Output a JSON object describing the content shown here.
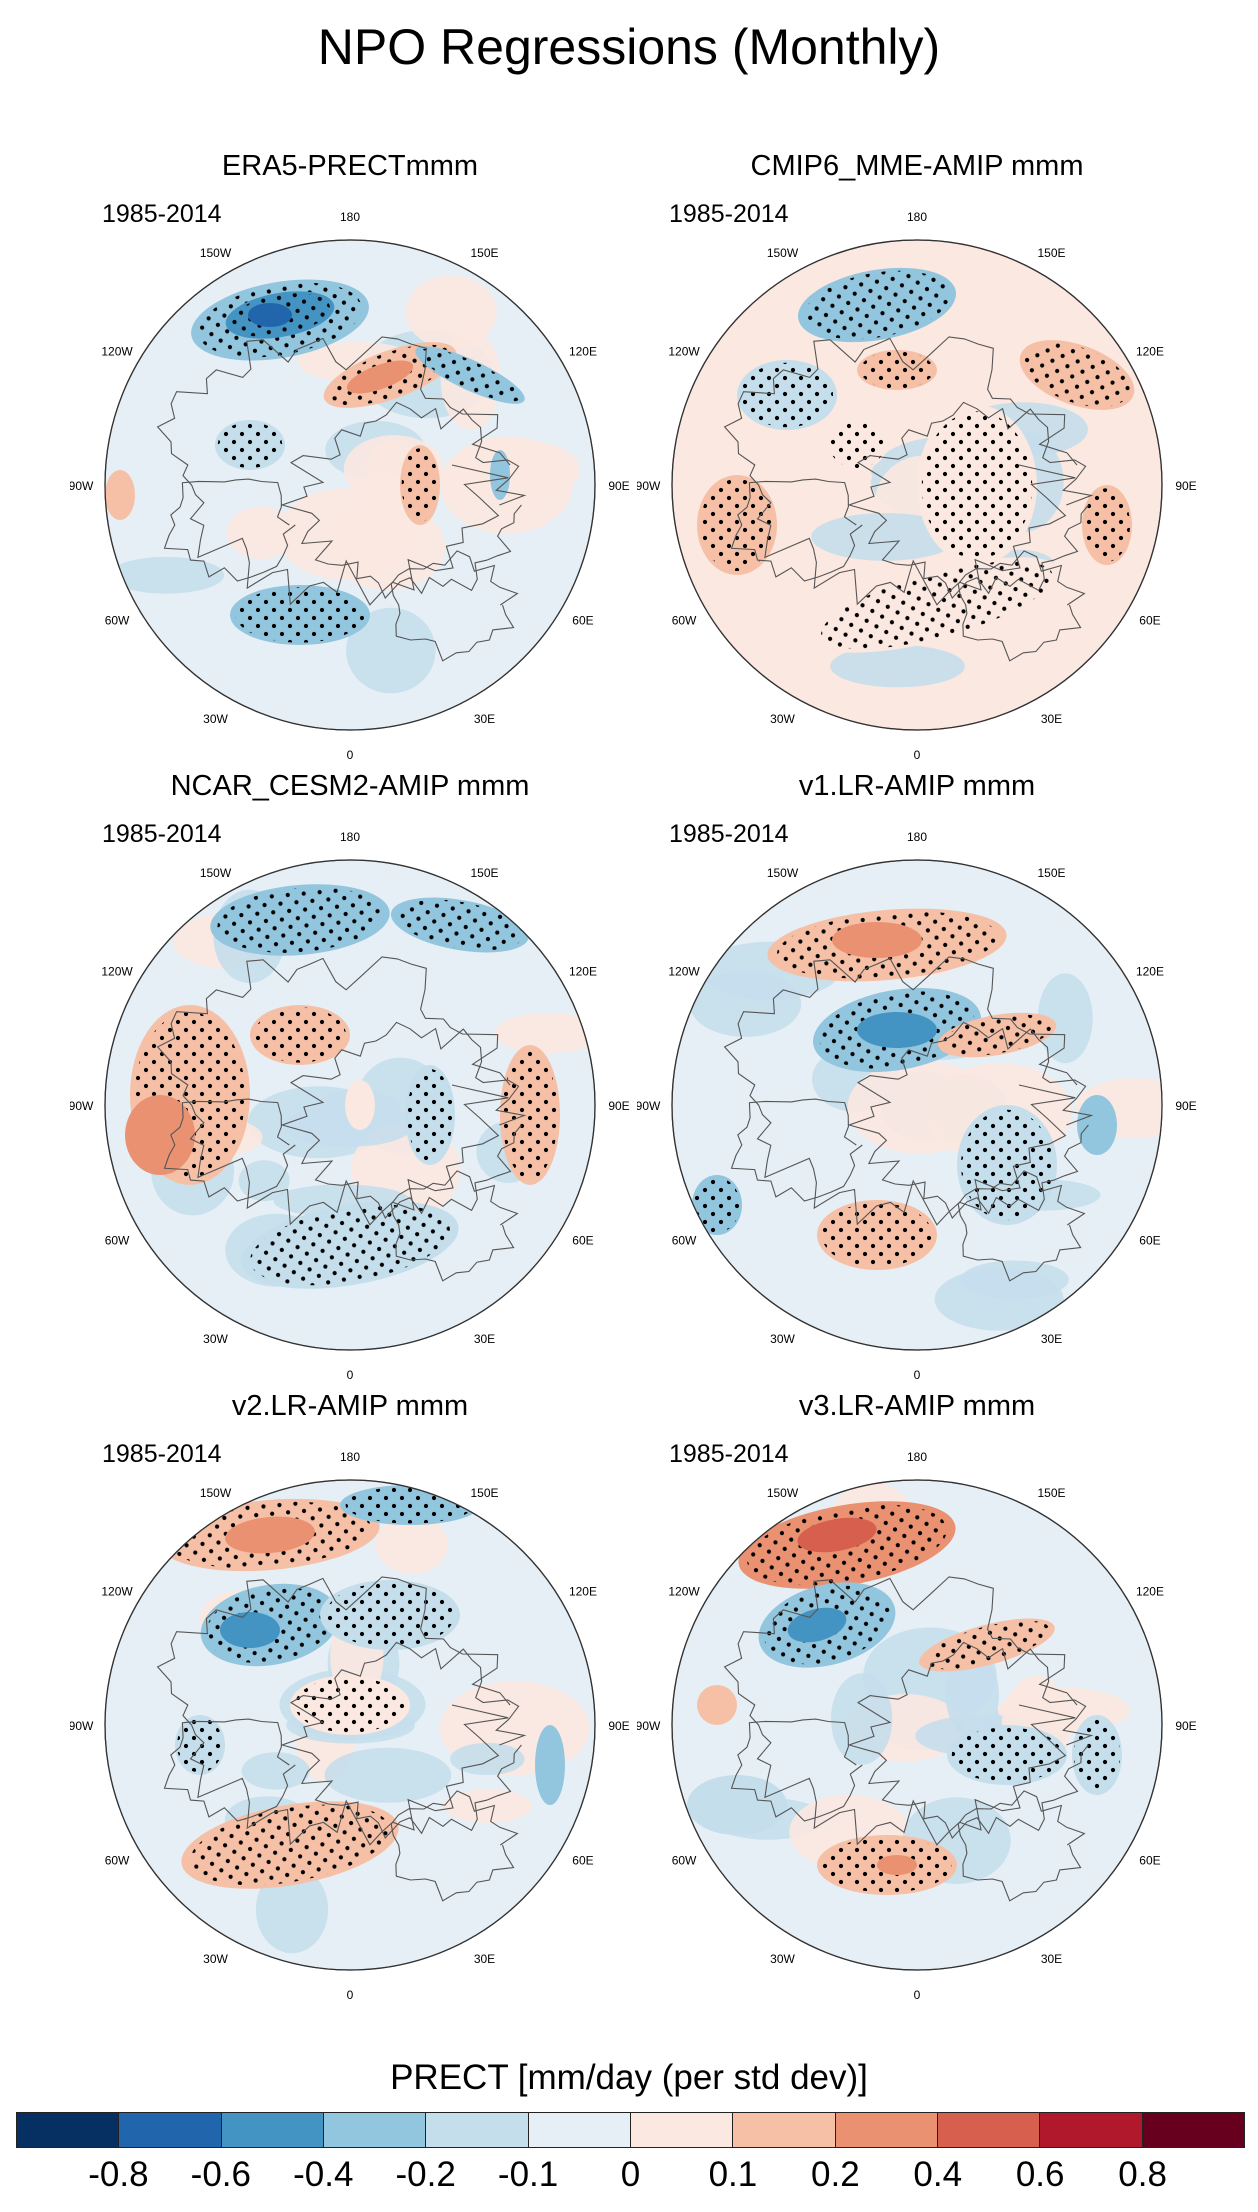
{
  "title": "NPO Regressions (Monthly)",
  "longitude_labels": [
    "180",
    "150E",
    "120E",
    "90E",
    "60E",
    "30E",
    "0",
    "30W",
    "60W",
    "90W",
    "120W",
    "150W"
  ],
  "panels": [
    {
      "title": "ERA5-PRECTmmm",
      "period": "1985-2014"
    },
    {
      "title": "CMIP6_MME-AMIP  mmm",
      "period": "1985-2014"
    },
    {
      "title": "NCAR_CESM2-AMIP  mmm",
      "period": "1985-2014"
    },
    {
      "title": "v1.LR-AMIP  mmm",
      "period": "1985-2014"
    },
    {
      "title": "v2.LR-AMIP  mmm",
      "period": "1985-2014"
    },
    {
      "title": "v3.LR-AMIP  mmm",
      "period": "1985-2014"
    }
  ],
  "colorbar": {
    "title": "PRECT [mm/day (per std dev)]",
    "labels": [
      "-0.8",
      "-0.6",
      "-0.4",
      "-0.2",
      "-0.1",
      "0",
      "0.1",
      "0.2",
      "0.4",
      "0.6",
      "0.8"
    ],
    "colors": [
      "#053061",
      "#2166ac",
      "#4393c3",
      "#92c5de",
      "#c5deec",
      "#e6eff5",
      "#fbe8e0",
      "#f6c0a6",
      "#ea9172",
      "#d6604d",
      "#b2182b",
      "#67001f"
    ]
  }
}
